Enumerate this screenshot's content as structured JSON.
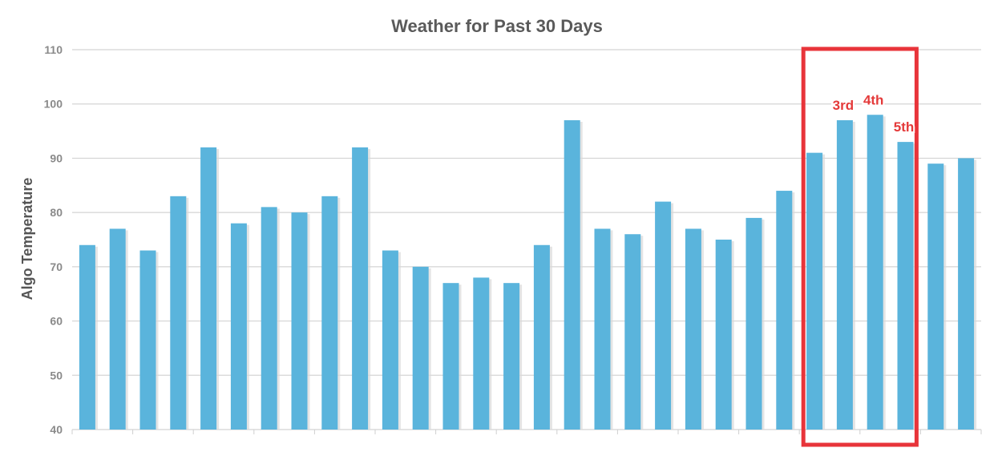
{
  "chart_data": {
    "type": "bar",
    "title": "Weather for Past 30 Days",
    "xlabel": "",
    "ylabel": "Algo Temperature",
    "ylim": [
      40,
      110
    ],
    "yticks": [
      40,
      50,
      60,
      70,
      80,
      90,
      100,
      110
    ],
    "grid": true,
    "values": [
      74,
      77,
      73,
      83,
      92,
      78,
      81,
      80,
      83,
      92,
      73,
      70,
      67,
      68,
      67,
      74,
      97,
      77,
      76,
      82,
      77,
      75,
      79,
      84,
      91,
      97,
      98,
      93,
      89,
      90
    ],
    "annotations": [
      {
        "index": 25,
        "text": "3rd"
      },
      {
        "index": 26,
        "text": "4th"
      },
      {
        "index": 27,
        "text": "5th"
      }
    ],
    "highlight": {
      "from_index": 24,
      "to_index": 27
    },
    "colors": {
      "bar": "#5ab4dc",
      "grid": "#d4d4d4",
      "highlight": "#e8343a",
      "annotation": "#e43a3a"
    }
  }
}
